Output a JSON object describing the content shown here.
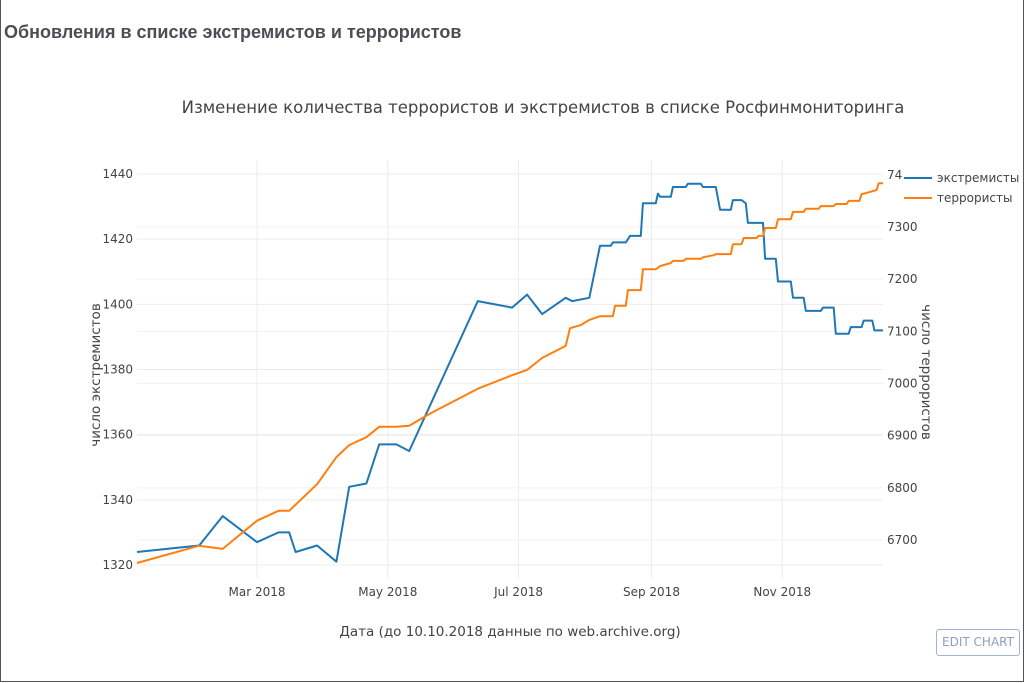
{
  "page": {
    "title": "Обновления в списке экстремистов и террористов",
    "edit_chart_label": "EDIT CHART"
  },
  "chart_data": {
    "type": "line",
    "title": "Изменение количества террористов и экстремистов в списке Росфинмониторинга",
    "xlabel": "Дата (до 10.10.2018 данные по web.archive.org)",
    "ylabel": "число экстремистов",
    "y2label": "число террористов",
    "xrange": [
      "2018-01-04",
      "2018-12-18"
    ],
    "ylim": [
      1320,
      1440
    ],
    "y2lim": [
      6650,
      7400
    ],
    "x_ticks": [
      {
        "date": "2018-03-01",
        "label": "Mar 2018"
      },
      {
        "date": "2018-05-01",
        "label": "May 2018"
      },
      {
        "date": "2018-07-01",
        "label": "Jul 2018"
      },
      {
        "date": "2018-09-01",
        "label": "Sep 2018"
      },
      {
        "date": "2018-11-01",
        "label": "Nov 2018"
      }
    ],
    "y_ticks": [
      1320,
      1340,
      1360,
      1380,
      1400,
      1420,
      1440
    ],
    "y2_ticks": [
      6700,
      6800,
      6900,
      7000,
      7100,
      7200,
      7300
    ],
    "y2_top_label": "74",
    "legend_position": "top-right",
    "grid": true,
    "series": [
      {
        "name": "экстремисты",
        "axis": "y",
        "color": "#1f77b4",
        "points": [
          [
            "2018-01-04",
            1324
          ],
          [
            "2018-02-02",
            1326
          ],
          [
            "2018-02-13",
            1335
          ],
          [
            "2018-03-01",
            1327
          ],
          [
            "2018-03-11",
            1330
          ],
          [
            "2018-03-16",
            1330
          ],
          [
            "2018-03-19",
            1324
          ],
          [
            "2018-03-29",
            1326
          ],
          [
            "2018-04-07",
            1321
          ],
          [
            "2018-04-13",
            1344
          ],
          [
            "2018-04-21",
            1345
          ],
          [
            "2018-04-27",
            1357
          ],
          [
            "2018-05-05",
            1357
          ],
          [
            "2018-05-11",
            1355
          ],
          [
            "2018-06-12",
            1401
          ],
          [
            "2018-06-28",
            1399
          ],
          [
            "2018-07-05",
            1403
          ],
          [
            "2018-07-12",
            1397
          ],
          [
            "2018-07-23",
            1402
          ],
          [
            "2018-07-26",
            1401
          ],
          [
            "2018-08-03",
            1402
          ],
          [
            "2018-08-08",
            1418
          ],
          [
            "2018-08-13",
            1418
          ],
          [
            "2018-08-14",
            1419
          ],
          [
            "2018-08-20",
            1419
          ],
          [
            "2018-08-22",
            1421
          ],
          [
            "2018-08-27",
            1421
          ],
          [
            "2018-08-28",
            1431
          ],
          [
            "2018-09-03",
            1431
          ],
          [
            "2018-09-04",
            1434
          ],
          [
            "2018-09-05",
            1433
          ],
          [
            "2018-09-10",
            1433
          ],
          [
            "2018-09-11",
            1436
          ],
          [
            "2018-09-17",
            1436
          ],
          [
            "2018-09-18",
            1437
          ],
          [
            "2018-09-24",
            1437
          ],
          [
            "2018-09-25",
            1436
          ],
          [
            "2018-10-01",
            1436
          ],
          [
            "2018-10-03",
            1429
          ],
          [
            "2018-10-08",
            1429
          ],
          [
            "2018-10-09",
            1432
          ],
          [
            "2018-10-13",
            1432
          ],
          [
            "2018-10-15",
            1431
          ],
          [
            "2018-10-16",
            1425
          ],
          [
            "2018-10-23",
            1425
          ],
          [
            "2018-10-24",
            1414
          ],
          [
            "2018-10-29",
            1414
          ],
          [
            "2018-10-30",
            1407
          ],
          [
            "2018-11-05",
            1407
          ],
          [
            "2018-11-06",
            1402
          ],
          [
            "2018-11-11",
            1402
          ],
          [
            "2018-11-12",
            1398
          ],
          [
            "2018-11-19",
            1398
          ],
          [
            "2018-11-20",
            1399
          ],
          [
            "2018-11-25",
            1399
          ],
          [
            "2018-11-26",
            1391
          ],
          [
            "2018-12-02",
            1391
          ],
          [
            "2018-12-03",
            1393
          ],
          [
            "2018-12-08",
            1393
          ],
          [
            "2018-12-09",
            1395
          ],
          [
            "2018-12-13",
            1395
          ],
          [
            "2018-12-14",
            1392
          ],
          [
            "2018-12-18",
            1392
          ]
        ]
      },
      {
        "name": "террористы",
        "axis": "y2",
        "color": "#ff7f0e",
        "points": [
          [
            "2018-01-04",
            6656
          ],
          [
            "2018-02-02",
            6689
          ],
          [
            "2018-02-13",
            6683
          ],
          [
            "2018-03-01",
            6737
          ],
          [
            "2018-03-11",
            6756
          ],
          [
            "2018-03-16",
            6756
          ],
          [
            "2018-03-29",
            6807
          ],
          [
            "2018-04-07",
            6859
          ],
          [
            "2018-04-13",
            6882
          ],
          [
            "2018-04-21",
            6897
          ],
          [
            "2018-04-27",
            6917
          ],
          [
            "2018-05-05",
            6917
          ],
          [
            "2018-05-11",
            6919
          ],
          [
            "2018-05-21",
            6943
          ],
          [
            "2018-06-12",
            6990
          ],
          [
            "2018-06-28",
            7016
          ],
          [
            "2018-07-05",
            7026
          ],
          [
            "2018-07-12",
            7049
          ],
          [
            "2018-07-23",
            7072
          ],
          [
            "2018-07-25",
            7106
          ],
          [
            "2018-07-30",
            7112
          ],
          [
            "2018-08-03",
            7122
          ],
          [
            "2018-08-08",
            7129
          ],
          [
            "2018-08-14",
            7129
          ],
          [
            "2018-08-15",
            7149
          ],
          [
            "2018-08-20",
            7149
          ],
          [
            "2018-08-21",
            7179
          ],
          [
            "2018-08-27",
            7179
          ],
          [
            "2018-08-28",
            7219
          ],
          [
            "2018-09-03",
            7219
          ],
          [
            "2018-09-05",
            7225
          ],
          [
            "2018-09-10",
            7231
          ],
          [
            "2018-09-11",
            7235
          ],
          [
            "2018-09-16",
            7235
          ],
          [
            "2018-09-17",
            7239
          ],
          [
            "2018-09-24",
            7239
          ],
          [
            "2018-09-25",
            7242
          ],
          [
            "2018-09-30",
            7246
          ],
          [
            "2018-10-01",
            7248
          ],
          [
            "2018-10-08",
            7248
          ],
          [
            "2018-10-09",
            7267
          ],
          [
            "2018-10-13",
            7267
          ],
          [
            "2018-10-14",
            7279
          ],
          [
            "2018-10-20",
            7279
          ],
          [
            "2018-10-21",
            7283
          ],
          [
            "2018-10-23",
            7283
          ],
          [
            "2018-10-24",
            7298
          ],
          [
            "2018-10-29",
            7298
          ],
          [
            "2018-10-30",
            7315
          ],
          [
            "2018-11-05",
            7315
          ],
          [
            "2018-11-06",
            7329
          ],
          [
            "2018-11-11",
            7329
          ],
          [
            "2018-11-12",
            7335
          ],
          [
            "2018-11-18",
            7335
          ],
          [
            "2018-11-19",
            7340
          ],
          [
            "2018-11-25",
            7340
          ],
          [
            "2018-11-26",
            7344
          ],
          [
            "2018-12-01",
            7344
          ],
          [
            "2018-12-02",
            7350
          ],
          [
            "2018-12-07",
            7350
          ],
          [
            "2018-12-08",
            7363
          ],
          [
            "2018-12-10",
            7365
          ],
          [
            "2018-12-15",
            7371
          ],
          [
            "2018-12-16",
            7384
          ],
          [
            "2018-12-18",
            7384
          ]
        ]
      }
    ]
  }
}
